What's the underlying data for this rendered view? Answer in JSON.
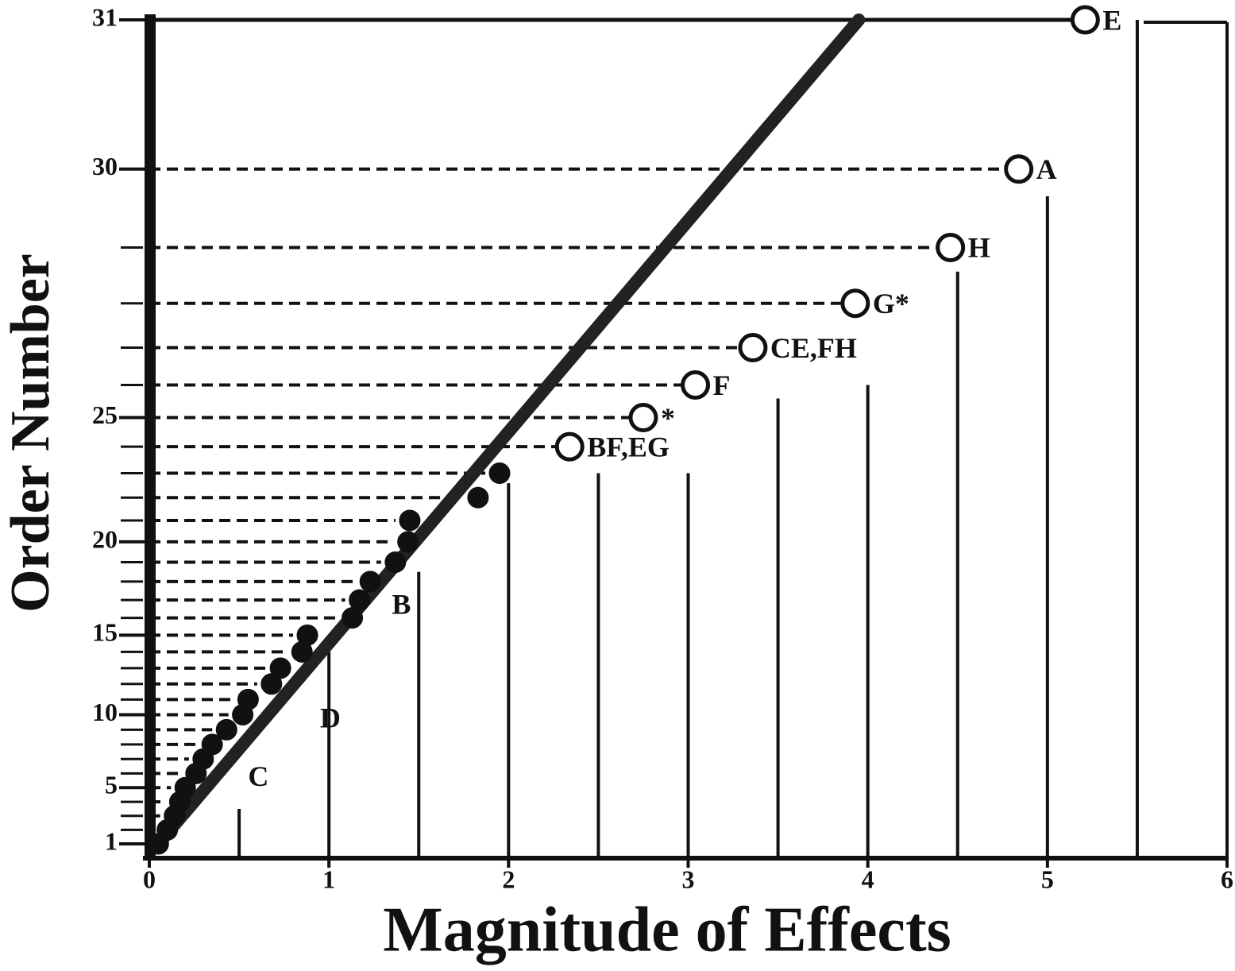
{
  "chart_data": {
    "type": "scatter",
    "x_label": "Magnitude of Effects",
    "y_label": "Order Number",
    "xlim": [
      0,
      6
    ],
    "xticks": [
      0,
      1,
      2,
      3,
      4,
      5,
      6
    ],
    "ylim": [
      1,
      31
    ],
    "yticks": [
      1,
      5,
      10,
      15,
      20,
      25,
      30,
      31
    ],
    "yscale": "half-normal",
    "color": "#111111",
    "x": [
      0.05,
      0.1,
      0.14,
      0.17,
      0.2,
      0.26,
      0.3,
      0.35,
      0.43,
      0.52,
      0.55,
      0.68,
      0.73,
      0.85,
      0.88,
      1.13,
      1.17,
      1.23,
      1.37,
      1.44,
      1.45,
      1.83,
      1.95,
      2.34,
      2.75,
      3.04,
      3.36,
      3.93,
      4.46,
      4.84,
      5.21
    ],
    "values": [
      1,
      2,
      3,
      4,
      5,
      6,
      7,
      8,
      9,
      10,
      11,
      12,
      13,
      14,
      15,
      16,
      17,
      18,
      19,
      20,
      21,
      22,
      23,
      24,
      25,
      26,
      27,
      28,
      29,
      30,
      31
    ],
    "markers": [
      "filled",
      "filled",
      "filled",
      "filled",
      "filled",
      "filled",
      "filled",
      "filled",
      "filled",
      "filled",
      "filled",
      "filled",
      "filled",
      "filled",
      "filled",
      "filled",
      "filled",
      "filled",
      "filled",
      "filled",
      "filled",
      "filled",
      "filled",
      "open",
      "open",
      "open",
      "open",
      "open",
      "open",
      "open",
      "open"
    ],
    "point_labels": [
      null,
      null,
      null,
      null,
      null,
      null,
      null,
      null,
      null,
      null,
      null,
      null,
      null,
      null,
      null,
      null,
      null,
      null,
      null,
      null,
      null,
      null,
      null,
      "BF,EG",
      "*",
      "F",
      "CE,FH",
      "G*",
      "H",
      "A",
      "E"
    ],
    "annotations": [
      {
        "text": "C",
        "x": 0.55,
        "y": 5.6
      },
      {
        "text": "D",
        "x": 0.95,
        "y": 9.6
      },
      {
        "text": "B",
        "x": 1.35,
        "y": 16.6
      }
    ],
    "leader_lines": [
      {
        "x": 0.5,
        "y": 3.5
      },
      {
        "x": 1.0,
        "y": 14
      },
      {
        "x": 1.5,
        "y": 18.5
      },
      {
        "x": 2.0,
        "y": 22.6
      },
      {
        "x": 2.5,
        "y": 23
      },
      {
        "x": 3.0,
        "y": 23
      },
      {
        "x": 3.5,
        "y": 25.6
      },
      {
        "x": 4.0,
        "y": 26
      },
      {
        "x": 4.5,
        "y": 28.6
      },
      {
        "x": 5.0,
        "y": 29.7
      },
      {
        "x": 5.5,
        "y": 31
      }
    ],
    "fit_line": {
      "x": [
        0.05,
        3.95
      ],
      "y": [
        1,
        31
      ]
    }
  }
}
